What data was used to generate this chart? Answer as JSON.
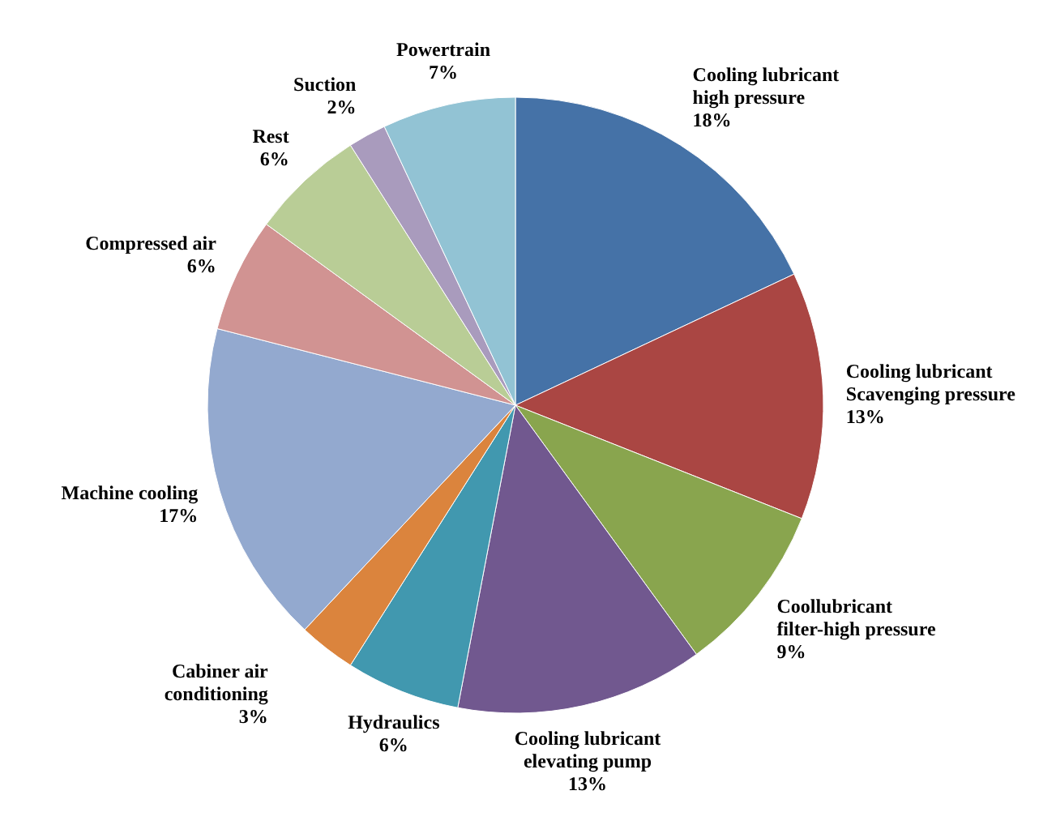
{
  "chart_data": {
    "type": "pie",
    "categories": [
      "Cooling lubricant high pressure",
      "Cooling lubricant Scavenging pressure",
      "Coollubricant filter-high pressure",
      "Cooling lubricant elevating pump",
      "Hydraulics",
      "Cabiner air conditioning",
      "Machine cooling",
      "Compressed air",
      "Rest",
      "Suction",
      "Powertrain"
    ],
    "values": [
      18,
      13,
      9,
      13,
      6,
      3,
      17,
      6,
      6,
      2,
      7
    ],
    "value_labels": [
      "18%",
      "13%",
      "9%",
      "13%",
      "6%",
      "3%",
      "17%",
      "6%",
      "6%",
      "2%",
      "7%"
    ],
    "colors": [
      "#4572a7",
      "#aa4643",
      "#89a54e",
      "#71588f",
      "#4198af",
      "#db843d",
      "#93a9cf",
      "#d19392",
      "#b9cd96",
      "#a99bbd",
      "#92c3d4"
    ]
  }
}
